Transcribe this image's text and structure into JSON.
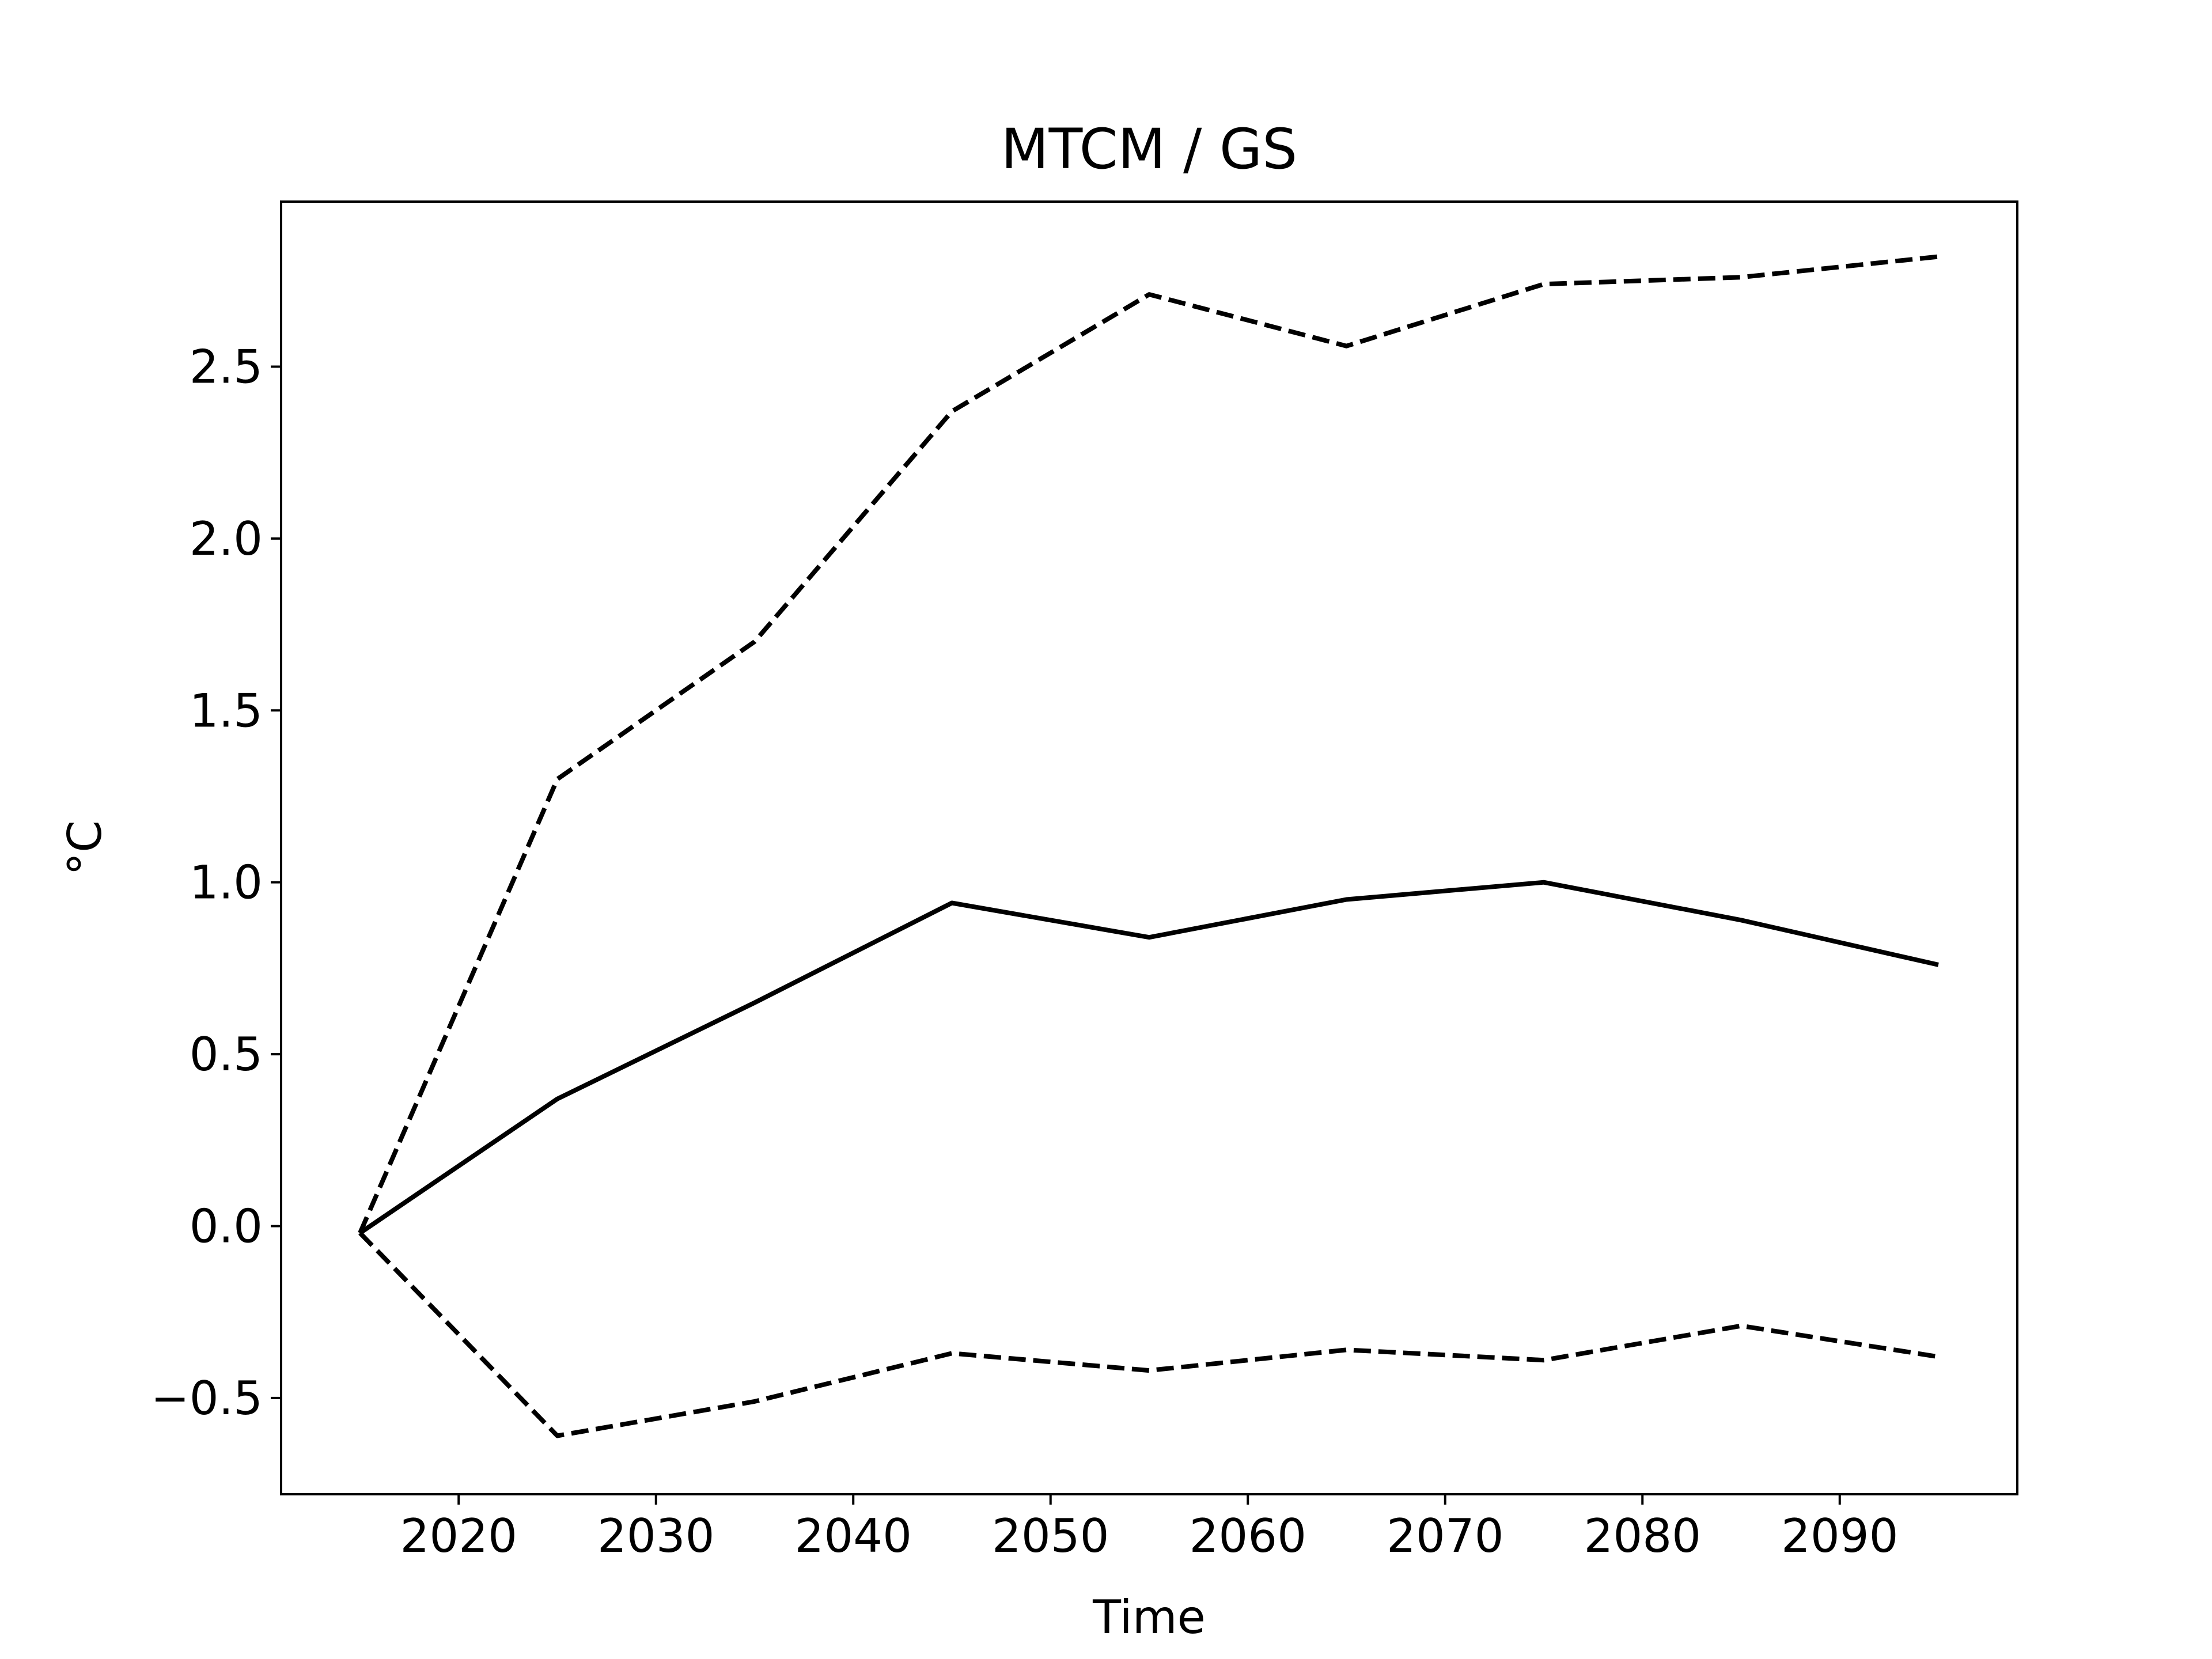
{
  "chart_data": {
    "type": "line",
    "title": "MTCM / GS",
    "xlabel": "Time",
    "ylabel": "°C",
    "x": [
      2015,
      2025,
      2035,
      2045,
      2055,
      2065,
      2075,
      2085,
      2095
    ],
    "series": [
      {
        "style": "solid",
        "color": "#000000",
        "values": [
          -0.02,
          0.37,
          0.65,
          0.94,
          0.84,
          0.95,
          1.0,
          0.89,
          0.76
        ]
      },
      {
        "style": "dashed",
        "color": "#000000",
        "values": [
          -0.02,
          1.3,
          1.7,
          2.37,
          2.71,
          2.56,
          2.74,
          2.76,
          2.82
        ]
      },
      {
        "style": "dashed",
        "color": "#000000",
        "values": [
          -0.02,
          -0.61,
          -0.51,
          -0.37,
          -0.42,
          -0.36,
          -0.39,
          -0.29,
          -0.38
        ]
      }
    ],
    "xlim": [
      2011,
      2099
    ],
    "ylim": [
      -0.78,
      2.98
    ],
    "xticks": [
      2020,
      2030,
      2040,
      2050,
      2060,
      2070,
      2080,
      2090
    ],
    "xtick_labels": [
      "2020",
      "2030",
      "2040",
      "2050",
      "2060",
      "2070",
      "2080",
      "2090"
    ],
    "yticks": [
      -0.5,
      0.0,
      0.5,
      1.0,
      1.5,
      2.0,
      2.5
    ],
    "ytick_labels": [
      "−0.5",
      "0.0",
      "0.5",
      "1.0",
      "1.5",
      "2.0",
      "2.5"
    ],
    "grid": false,
    "legend": "none"
  }
}
